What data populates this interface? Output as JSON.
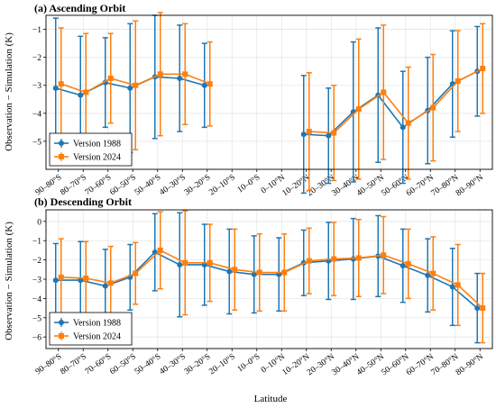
{
  "chart_data": [
    {
      "type": "line",
      "title": "(a) Ascending Orbit",
      "ylabel": "Observation − Simulation (K)",
      "xlabel": "",
      "ylim": [
        -6,
        -0.5
      ],
      "yticks": [
        -1,
        -2,
        -3,
        -4,
        -5
      ],
      "categories": [
        "90–80°S",
        "80–70°S",
        "70–60°S",
        "60–50°S",
        "50–40°S",
        "40–30°S",
        "30–20°S",
        "20–10°S",
        "10–0°S",
        "0–10°N",
        "10–20°N",
        "20–30°N",
        "30–40°N",
        "40–50°N",
        "50–60°N",
        "60–70°N",
        "70–80°N",
        "80–90°N"
      ],
      "legend": "bottom-left",
      "grid": true,
      "series": [
        {
          "name": "Version 1988",
          "color": "#1f77b4",
          "values": [
            -3.1,
            -3.35,
            -2.9,
            -3.1,
            -2.7,
            -2.75,
            -3.0,
            null,
            null,
            null,
            -4.75,
            -4.8,
            -3.95,
            -3.35,
            -4.5,
            -3.9,
            -2.95,
            -2.5
          ],
          "errors": [
            2.5,
            2.1,
            1.6,
            2.3,
            2.2,
            1.9,
            1.5,
            null,
            null,
            null,
            2.1,
            1.7,
            2.5,
            2.4,
            2.0,
            1.9,
            1.9,
            1.6
          ]
        },
        {
          "name": "Version 2024",
          "color": "#ff7f0e",
          "values": [
            -2.95,
            -3.25,
            -2.75,
            -3.0,
            -2.6,
            -2.6,
            -2.95,
            null,
            null,
            null,
            -4.65,
            -4.7,
            -3.85,
            -3.25,
            -4.35,
            -3.8,
            -2.85,
            -2.4
          ],
          "errors": [
            2.0,
            2.1,
            1.6,
            2.3,
            2.2,
            1.8,
            1.5,
            null,
            null,
            null,
            2.1,
            1.7,
            2.5,
            2.4,
            2.0,
            1.9,
            1.8,
            1.6
          ]
        }
      ]
    },
    {
      "type": "line",
      "title": "(b) Descending Orbit",
      "ylabel": "Observation − Simulation (K)",
      "xlabel": "Latitude",
      "ylim": [
        -6.6,
        0.6
      ],
      "yticks": [
        0,
        -1,
        -2,
        -3,
        -4,
        -5,
        -6
      ],
      "categories": [
        "90–80°S",
        "80–70°S",
        "70–60°S",
        "60–50°S",
        "50–40°S",
        "40–30°S",
        "30–20°S",
        "20–10°S",
        "10–0°S",
        "0–10°N",
        "10–20°N",
        "20–30°N",
        "30–40°N",
        "40–50°N",
        "50–60°N",
        "60–70°N",
        "70–80°N",
        "80–90°N"
      ],
      "legend": "bottom-left",
      "grid": true,
      "series": [
        {
          "name": "Version 1988",
          "color": "#1f77b4",
          "values": [
            -3.05,
            -3.05,
            -3.35,
            -2.9,
            -1.6,
            -2.25,
            -2.25,
            -2.6,
            -2.75,
            -2.75,
            -2.15,
            -2.05,
            -1.95,
            -1.8,
            -2.3,
            -2.8,
            -3.4,
            -4.5
          ],
          "errors": [
            1.9,
            2.0,
            1.9,
            1.7,
            2.0,
            2.7,
            2.1,
            2.2,
            2.0,
            1.9,
            1.7,
            2.0,
            2.1,
            2.1,
            1.9,
            1.9,
            2.0,
            1.8
          ]
        },
        {
          "name": "Version 2024",
          "color": "#ff7f0e",
          "values": [
            -2.9,
            -2.95,
            -3.2,
            -2.7,
            -1.5,
            -2.15,
            -2.15,
            -2.5,
            -2.65,
            -2.65,
            -2.05,
            -1.95,
            -1.9,
            -1.75,
            -2.2,
            -2.7,
            -3.3,
            -4.5
          ],
          "errors": [
            2.0,
            1.9,
            1.9,
            1.6,
            2.0,
            2.7,
            2.0,
            2.1,
            2.0,
            2.0,
            1.7,
            1.9,
            2.0,
            2.0,
            1.8,
            1.9,
            2.1,
            1.8
          ]
        }
      ]
    }
  ]
}
